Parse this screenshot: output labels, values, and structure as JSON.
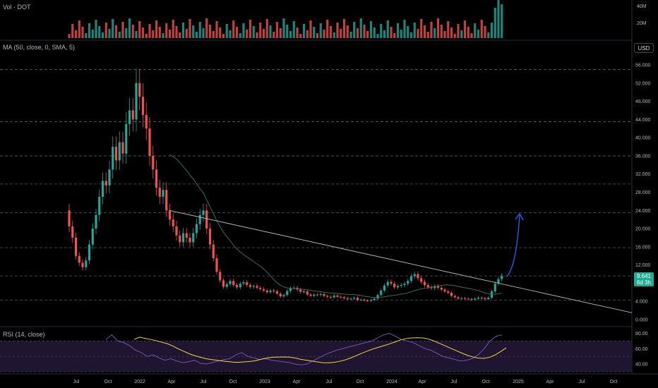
{
  "panes": {
    "volume_label": "Vol · DOT",
    "ma_label": "MA (50, close, 0, SMA, 5)",
    "rsi_label": "RSI (14, close)"
  },
  "currency_button": "USD",
  "last_price": {
    "value": "9.641",
    "countdown": "6d 3h"
  },
  "colors": {
    "up": "#26a69a",
    "down": "#ef5350",
    "ma": "#3f6b4c",
    "trendline": "#b2b5be",
    "arrow": "#2962ff",
    "rsi": "#7e57c2",
    "rsi_ma": "#f0d44a",
    "rsi_band": "#1f1530",
    "grid_dash": "#555a66",
    "background": "#000000"
  },
  "axes": {
    "price_ticks": [
      "56.000",
      "52.000",
      "48.000",
      "44.000",
      "40.000",
      "36.000",
      "32.000",
      "28.000",
      "24.000",
      "20.000",
      "16.000",
      "12.000",
      "8.000",
      "4.000",
      "0.000"
    ],
    "volume_ticks": [
      "40M",
      "20M"
    ],
    "rsi_ticks": [
      "80.00",
      "60.00",
      "40.00"
    ],
    "x_ticks": [
      "Jul",
      "Oct",
      "2022",
      "Apr",
      "Jul",
      "Oct",
      "2023",
      "Apr",
      "Jul",
      "Oct",
      "2024",
      "Apr",
      "Jul",
      "Oct",
      "2025",
      "Apr",
      "Jul",
      "Oct"
    ]
  },
  "chart_data": {
    "type": "candlestick",
    "symbol": "DOT",
    "quote": "USD",
    "x_scale": "weekly",
    "ylim": [
      0,
      56
    ],
    "horizontal_levels": [
      4.3,
      9.6,
      15.8,
      23.5,
      29.8,
      36.0,
      43.5,
      55.0
    ],
    "candles_close": [
      20.5,
      18.0,
      14.0,
      12.5,
      11.5,
      13.0,
      16.5,
      20.0,
      23.0,
      27.0,
      30.5,
      29.5,
      33.0,
      38.0,
      35.0,
      39.0,
      36.5,
      43.0,
      46.0,
      44.0,
      52.0,
      49.0,
      45.0,
      42.0,
      36.0,
      33.0,
      29.0,
      27.0,
      28.5,
      24.0,
      22.0,
      20.5,
      18.5,
      17.0,
      19.0,
      18.0,
      17.0,
      19.0,
      21.0,
      23.0,
      24.0,
      20.0,
      16.5,
      13.5,
      10.5,
      8.6,
      7.2,
      7.8,
      8.5,
      7.6,
      7.1,
      7.9,
      8.2,
      7.6,
      7.2,
      7.4,
      7.0,
      6.7,
      6.4,
      6.0,
      6.4,
      6.2,
      5.7,
      5.1,
      5.4,
      6.3,
      6.9,
      7.0,
      6.6,
      6.1,
      6.2,
      5.5,
      5.2,
      5.5,
      5.4,
      5.6,
      5.2,
      5.0,
      4.9,
      5.3,
      5.0,
      4.9,
      4.7,
      4.5,
      4.6,
      4.8,
      4.3,
      4.4,
      4.2,
      4.1,
      4.3,
      4.6,
      5.4,
      6.4,
      7.5,
      8.3,
      7.9,
      7.1,
      7.4,
      7.6,
      7.9,
      8.5,
      9.5,
      10.0,
      9.1,
      8.3,
      7.6,
      7.1,
      6.9,
      7.3,
      7.0,
      6.6,
      6.2,
      5.9,
      5.2,
      4.9,
      4.6,
      4.7,
      4.6,
      4.5,
      4.4,
      4.6,
      4.8,
      4.7,
      4.5,
      4.8,
      6.2,
      7.9,
      8.9,
      9.641
    ],
    "ma_50_close": [
      5.3,
      5.2,
      5.0,
      5.4,
      6.0,
      6.3,
      6.5,
      6.6
    ],
    "trendline": {
      "from": [
        "2022-04",
        24.0
      ],
      "to": [
        "2025-10",
        1.5
      ]
    },
    "projection_arrow": {
      "from": [
        "2024-11",
        9.6
      ],
      "to": [
        "2024-12",
        23.5
      ]
    },
    "volume_units": "M",
    "rsi_ticks_values": [
      80,
      60,
      40
    ],
    "rsi": [
      72,
      78,
      70,
      68,
      64,
      58,
      55,
      50,
      52,
      48,
      45,
      47,
      44,
      42,
      43,
      45,
      41,
      40,
      42,
      44,
      46,
      47,
      52,
      55,
      50,
      48,
      46,
      47,
      45,
      44,
      43,
      42,
      40,
      39,
      40,
      44,
      48,
      52,
      55,
      58,
      60,
      62,
      64,
      66,
      68,
      70,
      74,
      78,
      80,
      76,
      72,
      70,
      68,
      64,
      60,
      58,
      54,
      50,
      48,
      46,
      44,
      45,
      47,
      52,
      60,
      70,
      76,
      78
    ]
  }
}
